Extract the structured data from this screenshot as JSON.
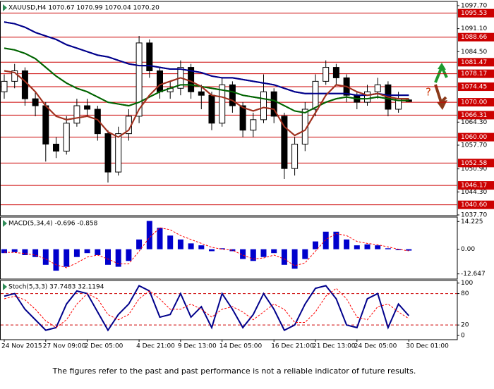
{
  "chart_data": [
    {
      "type": "candlestick",
      "title": "XAUUSD,H4 1070.67 1070.99 1070.04 1070.20",
      "annotation": "?",
      "categories": [
        "24 Nov 2015",
        null,
        null,
        null,
        "27 Nov 09:00",
        null,
        null,
        null,
        "2 Dec 05:00",
        null,
        null,
        null,
        null,
        "4 Dec 21:00",
        null,
        null,
        null,
        "9 Dec 13:00",
        null,
        null,
        null,
        "14 Dec 05:00",
        null,
        null,
        null,
        null,
        "16 Dec 21:00",
        null,
        null,
        null,
        "21 Dec 13:00",
        null,
        null,
        null,
        "24 Dec 05:00",
        null,
        null,
        null,
        null,
        "30 Dec 01:00"
      ],
      "open": [
        1073,
        1076,
        1079,
        1071,
        1069,
        1058,
        1056,
        1064,
        1069,
        1068,
        1061,
        1050,
        1061,
        1066,
        1087,
        1079,
        1073,
        1074,
        1080,
        1073,
        1072,
        1064,
        1075,
        1069,
        1062,
        1065,
        1073,
        1066,
        1051,
        1058,
        1068,
        1076,
        1080,
        1077,
        1072,
        1070,
        1073,
        1075,
        1068,
        1070.67
      ],
      "high": [
        1078,
        1081,
        1080,
        1073,
        1070,
        1060,
        1066,
        1071,
        1071,
        1069,
        1062,
        1063,
        1068,
        1089,
        1088,
        1080,
        1076,
        1082,
        1081,
        1075,
        1073,
        1077,
        1076,
        1070,
        1067,
        1078,
        1074,
        1067,
        1060,
        1070,
        1078,
        1082,
        1081,
        1078,
        1073,
        1075,
        1077,
        1076,
        1073,
        1070.99
      ],
      "low": [
        1071,
        1074,
        1069,
        1066,
        1053,
        1054,
        1055,
        1063,
        1066,
        1059,
        1047,
        1049,
        1059,
        1064,
        1077,
        1071,
        1071,
        1072,
        1071,
        1068,
        1062,
        1063,
        1067,
        1060,
        1060,
        1064,
        1064,
        1048,
        1049,
        1056,
        1066,
        1075,
        1075,
        1070,
        1068,
        1069,
        1071,
        1066,
        1067,
        1070.04
      ],
      "close": [
        1076,
        1079,
        1071,
        1069,
        1058,
        1056,
        1064,
        1069,
        1068,
        1061,
        1050,
        1061,
        1066,
        1087,
        1079,
        1073,
        1074,
        1080,
        1073,
        1072,
        1064,
        1075,
        1069,
        1062,
        1065,
        1073,
        1066,
        1051,
        1058,
        1068,
        1076,
        1080,
        1077,
        1072,
        1070,
        1073,
        1075,
        1068,
        1071,
        1070.2
      ],
      "up_color": "#ffffff",
      "down_color": "#000000",
      "lines": [
        {
          "color": "#00008b",
          "values": [
            1093,
            1092.5,
            1091.5,
            1090,
            1089,
            1088,
            1086.5,
            1085.5,
            1084.5,
            1083.5,
            1083,
            1082,
            1081,
            1080.5,
            1080.5,
            1080,
            1079.5,
            1079.5,
            1079,
            1078.5,
            1077.5,
            1077,
            1077,
            1076.5,
            1076,
            1075.5,
            1075,
            1074,
            1073,
            1072.5,
            1072.5,
            1072.5,
            1072.5,
            1072.5,
            1072,
            1072,
            1072.5,
            1072,
            1072,
            1072
          ]
        },
        {
          "color": "#006400",
          "values": [
            1085.5,
            1085,
            1084,
            1082.5,
            1080,
            1077.5,
            1075.5,
            1074,
            1073,
            1071.5,
            1070,
            1069.5,
            1069,
            1070,
            1071.5,
            1073,
            1074,
            1075,
            1075,
            1074.5,
            1074,
            1073.5,
            1073,
            1072,
            1071.5,
            1071,
            1070.5,
            1069,
            1067.5,
            1067,
            1068.5,
            1070,
            1071,
            1071.5,
            1071,
            1071,
            1071.5,
            1071,
            1070.5,
            1070.5
          ]
        },
        {
          "color": "#a0301e",
          "values": [
            1079,
            1078.5,
            1076,
            1073,
            1069,
            1066,
            1065,
            1065.5,
            1066,
            1065,
            1061.5,
            1060,
            1062,
            1068,
            1072,
            1075,
            1076,
            1077,
            1076,
            1074.5,
            1072,
            1071.5,
            1070.5,
            1068.5,
            1067.5,
            1068.5,
            1068,
            1063,
            1060.5,
            1062,
            1067,
            1072,
            1075,
            1074.5,
            1073,
            1072,
            1072.5,
            1071.5,
            1071,
            1071
          ]
        }
      ],
      "ylim": [
        1037.5,
        1098.9
      ],
      "yticks": [
        {
          "value": 1097.7,
          "label": "1097.70"
        },
        {
          "value": 1091.1,
          "label": "1091.10"
        },
        {
          "value": 1084.5,
          "label": "1084.50"
        },
        {
          "value": 1064.3,
          "label": "1064.30"
        },
        {
          "value": 1057.7,
          "label": "1057.70"
        },
        {
          "value": 1050.9,
          "label": "1050.90"
        },
        {
          "value": 1044.3,
          "label": "1044.30"
        },
        {
          "value": 1037.7,
          "label": "1037.70"
        }
      ],
      "levels": [
        1095.53,
        1088.66,
        1081.47,
        1078.17,
        1074.45,
        {
          "value": 1070,
          "label": "1070.00"
        },
        1066.31,
        {
          "value": 1060,
          "label": "1060.00"
        },
        1052.58,
        1046.17,
        {
          "value": 1040.6,
          "label": "1040.60"
        }
      ],
      "level_color": "#cc0000"
    },
    {
      "type": "bar",
      "title": "MACD(5,34,4) -0.696 -0.858",
      "color": "#0000cc",
      "values": [
        -2,
        -1.5,
        -3,
        -4,
        -8,
        -11,
        -9,
        -4,
        -2,
        -3,
        -8,
        -9,
        -6,
        5,
        14.5,
        11,
        7,
        5,
        3,
        2,
        -1,
        0.5,
        -1,
        -5,
        -6,
        -4,
        -2,
        -8,
        -10,
        -5,
        4,
        9,
        9,
        5,
        2,
        2.5,
        2,
        0.5,
        -0.5,
        -0.696
      ],
      "signal": {
        "color": "#ff0000",
        "values": [
          -1.5,
          -1.7,
          -2.2,
          -3,
          -5,
          -8,
          -9.5,
          -7,
          -4,
          -3,
          -5,
          -7.5,
          -7.5,
          -1,
          6,
          11,
          10,
          7,
          5,
          3,
          1,
          0,
          -0.5,
          -3,
          -5,
          -4.5,
          -3,
          -5,
          -8.5,
          -7,
          -1,
          5,
          8,
          7,
          4,
          3,
          2.3,
          1.2,
          0,
          -0.858
        ]
      },
      "ylim": [
        -15.3,
        16.5
      ],
      "yticks": [
        14.225,
        {
          "value": 0,
          "label": "0.00"
        },
        -12.647
      ]
    },
    {
      "type": "line",
      "title": "Stoch(5,3,3) 37.7483 32.1194",
      "series": [
        {
          "color": "#00008b",
          "style": "solid",
          "values": [
            75,
            80,
            50,
            30,
            10,
            15,
            60,
            85,
            80,
            45,
            10,
            40,
            60,
            95,
            85,
            35,
            40,
            80,
            35,
            55,
            15,
            80,
            50,
            15,
            40,
            80,
            50,
            10,
            20,
            60,
            90,
            95,
            70,
            20,
            15,
            70,
            80,
            15,
            60,
            37.7483
          ]
        },
        {
          "color": "#ff0000",
          "style": "dashed",
          "values": [
            70,
            75,
            68,
            50,
            28,
            15,
            30,
            60,
            80,
            70,
            40,
            30,
            40,
            70,
            85,
            70,
            50,
            50,
            60,
            50,
            35,
            50,
            55,
            45,
            30,
            45,
            60,
            50,
            25,
            25,
            45,
            75,
            90,
            70,
            35,
            30,
            55,
            60,
            45,
            32.1194
          ]
        }
      ],
      "ylim": [
        -8,
        105
      ],
      "yticks": [
        100,
        80,
        20,
        0
      ],
      "levels": [
        80,
        20
      ],
      "level_color": "#cc0000"
    }
  ],
  "footer": "The figures refer to the past and past performance is not a reliable indicator of future results."
}
